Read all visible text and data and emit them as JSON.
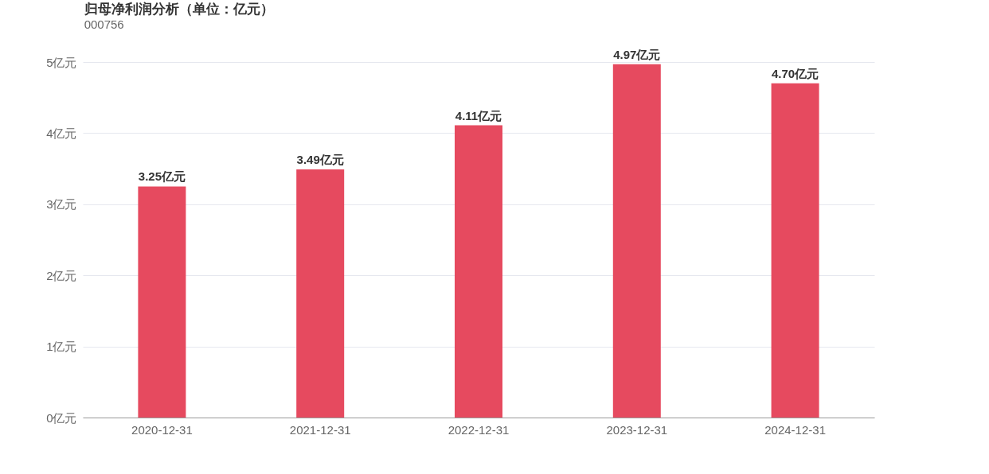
{
  "chart_data": {
    "type": "bar",
    "title": "归母净利润分析（单位：亿元）",
    "subtitle": "000756",
    "categories": [
      "2020-12-31",
      "2021-12-31",
      "2022-12-31",
      "2023-12-31",
      "2024-12-31"
    ],
    "values": [
      3.25,
      3.49,
      4.11,
      4.97,
      4.7
    ],
    "value_labels": [
      "3.25亿元",
      "3.49亿元",
      "4.11亿元",
      "4.97亿元",
      "4.70亿元"
    ],
    "color": "#e64a5f",
    "ylim": [
      0,
      5
    ],
    "yticks": [
      {
        "value": 0,
        "label": "0亿元"
      },
      {
        "value": 1,
        "label": "1亿元"
      },
      {
        "value": 2,
        "label": "2亿元"
      },
      {
        "value": 3,
        "label": "3亿元"
      },
      {
        "value": 4,
        "label": "4亿元"
      },
      {
        "value": 5,
        "label": "5亿元"
      }
    ],
    "grid": "y"
  }
}
